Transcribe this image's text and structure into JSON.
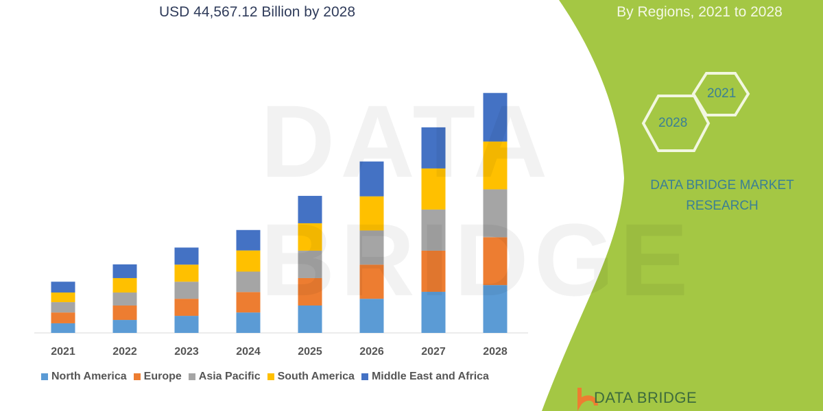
{
  "header": {
    "title_line": "USD 44,567.12 Billion by 2028",
    "right_title_line": "By Regions, 2021 to 2028"
  },
  "side_panel": {
    "hex_start": "2021",
    "hex_end": "2028",
    "brand_line1": "DATA BRIDGE MARKET",
    "brand_line2": "RESEARCH",
    "logo_text": "DATA BRIDGE",
    "watermark_text": "DATA BRIDGE",
    "panel_color": "#a4c744"
  },
  "chart_data": {
    "type": "bar",
    "stacked": true,
    "categories": [
      "2021",
      "2022",
      "2023",
      "2024",
      "2025",
      "2026",
      "2027",
      "2028"
    ],
    "series": [
      {
        "name": "North America",
        "color": "#5b9bd5",
        "values": [
          4.0,
          5.4,
          7.1,
          8.5,
          11.4,
          14.2,
          17.1,
          19.9
        ]
      },
      {
        "name": "Europe",
        "color": "#ed7d31",
        "values": [
          4.5,
          6.0,
          7.1,
          8.5,
          11.4,
          14.2,
          17.1,
          19.9
        ]
      },
      {
        "name": "Asia Pacific",
        "color": "#a5a5a5",
        "values": [
          4.3,
          5.4,
          7.1,
          8.5,
          11.4,
          14.2,
          17.1,
          19.9
        ]
      },
      {
        "name": "South America",
        "color": "#ffc000",
        "values": [
          4.0,
          6.0,
          7.1,
          8.8,
          11.4,
          14.2,
          17.1,
          19.9
        ]
      },
      {
        "name": "Middle East and Africa",
        "color": "#4472c4",
        "values": [
          4.5,
          5.7,
          7.1,
          8.5,
          11.4,
          14.5,
          17.1,
          20.2
        ]
      }
    ],
    "ylim": [
      0,
      100
    ],
    "y_axis_visible": false,
    "grid": false,
    "legend": "bottom",
    "xlabel": "",
    "ylabel": ""
  }
}
